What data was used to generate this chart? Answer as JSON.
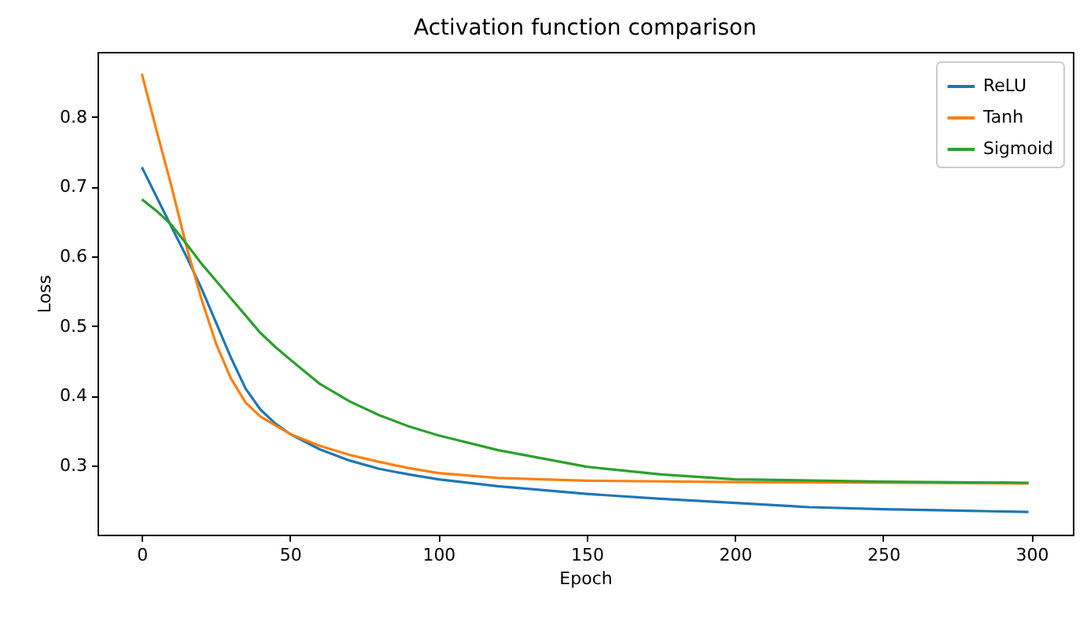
{
  "chart_data": {
    "type": "line",
    "title": "Activation function comparison",
    "xlabel": "Epoch",
    "ylabel": "Loss",
    "xlim": [
      -14.95,
      313.95
    ],
    "xticks": [
      0,
      50,
      100,
      150,
      200,
      250,
      300
    ],
    "ylim": [
      0.2005,
      0.8935
    ],
    "yticks": [
      0.3,
      0.4,
      0.5,
      0.6,
      0.7,
      0.8
    ],
    "legend": "top right",
    "grid": false,
    "series": [
      {
        "name": "ReLU",
        "color": "#1f77b4",
        "x": [
          0,
          5,
          10,
          15,
          20,
          25,
          30,
          35,
          40,
          45,
          50,
          60,
          70,
          80,
          90,
          100,
          120,
          150,
          175,
          200,
          225,
          250,
          275,
          299
        ],
        "values": [
          0.728,
          0.685,
          0.642,
          0.6,
          0.555,
          0.505,
          0.455,
          0.41,
          0.38,
          0.36,
          0.345,
          0.323,
          0.307,
          0.295,
          0.287,
          0.28,
          0.27,
          0.259,
          0.252,
          0.246,
          0.24,
          0.237,
          0.235,
          0.233
        ]
      },
      {
        "name": "Tanh",
        "color": "#ff7f0e",
        "x": [
          0,
          5,
          10,
          15,
          20,
          25,
          30,
          35,
          40,
          50,
          60,
          70,
          80,
          90,
          100,
          120,
          150,
          200,
          250,
          299
        ],
        "values": [
          0.862,
          0.78,
          0.7,
          0.615,
          0.54,
          0.475,
          0.425,
          0.39,
          0.37,
          0.345,
          0.328,
          0.315,
          0.305,
          0.296,
          0.289,
          0.282,
          0.278,
          0.276,
          0.275,
          0.274
        ]
      },
      {
        "name": "Sigmoid",
        "color": "#2ca02c",
        "x": [
          0,
          5,
          10,
          15,
          20,
          25,
          30,
          35,
          40,
          45,
          50,
          60,
          70,
          80,
          90,
          100,
          120,
          150,
          175,
          200,
          250,
          299
        ],
        "values": [
          0.682,
          0.665,
          0.645,
          0.618,
          0.59,
          0.565,
          0.54,
          0.515,
          0.49,
          0.47,
          0.452,
          0.417,
          0.392,
          0.372,
          0.356,
          0.343,
          0.322,
          0.298,
          0.287,
          0.28,
          0.2765,
          0.275
        ]
      }
    ]
  }
}
